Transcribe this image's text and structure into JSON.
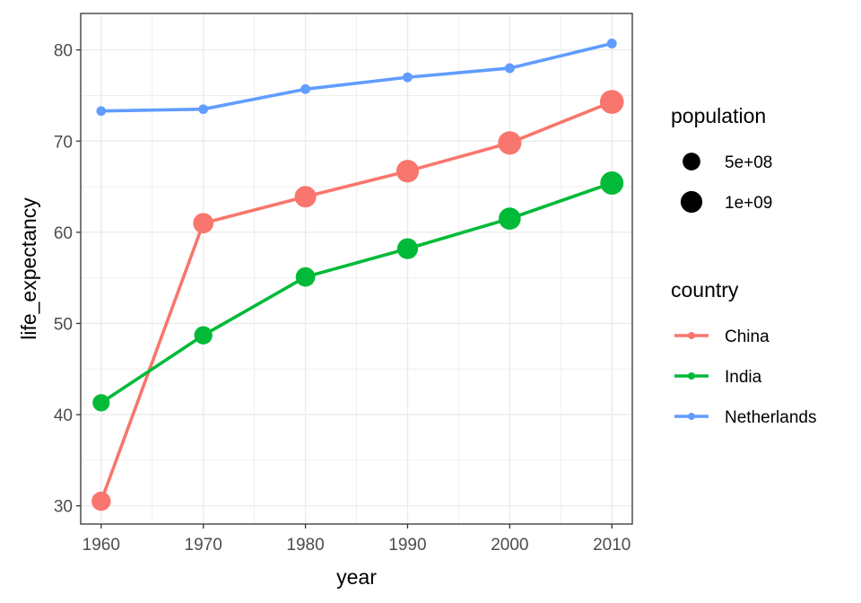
{
  "chart_data": {
    "type": "line",
    "x": [
      1960,
      1970,
      1980,
      1990,
      2000,
      2010
    ],
    "xlabel": "year",
    "ylabel": "life_expectancy",
    "xlim": [
      1958,
      2012
    ],
    "ylim": [
      28,
      84
    ],
    "x_ticks": [
      1960,
      1970,
      1980,
      1990,
      2000,
      2010
    ],
    "y_ticks": [
      30,
      40,
      50,
      60,
      70,
      80
    ],
    "grid": true,
    "legend_position": "right",
    "series": [
      {
        "name": "China",
        "color": "#F8766D",
        "values": [
          30.5,
          61.0,
          63.9,
          66.7,
          69.8,
          74.3
        ],
        "population": [
          667000000,
          818000000,
          981000000,
          1135000000,
          1263000000,
          1338000000
        ]
      },
      {
        "name": "India",
        "color": "#00BA38",
        "values": [
          41.3,
          48.7,
          55.1,
          58.2,
          61.5,
          65.4
        ],
        "population": [
          450000000,
          554000000,
          697000000,
          873000000,
          1053000000,
          1231000000
        ]
      },
      {
        "name": "Netherlands",
        "color": "#619CFF",
        "values": [
          73.3,
          73.5,
          75.7,
          77.0,
          78.0,
          80.7
        ],
        "population": [
          11500000,
          13000000,
          14100000,
          15000000,
          15900000,
          16600000
        ]
      }
    ],
    "legends": {
      "size": {
        "title": "population",
        "entries": [
          {
            "label": "5e+08",
            "value": 500000000
          },
          {
            "label": "1e+09",
            "value": 1000000000
          }
        ]
      },
      "color": {
        "title": "country",
        "entries": [
          "China",
          "India",
          "Netherlands"
        ]
      }
    }
  }
}
